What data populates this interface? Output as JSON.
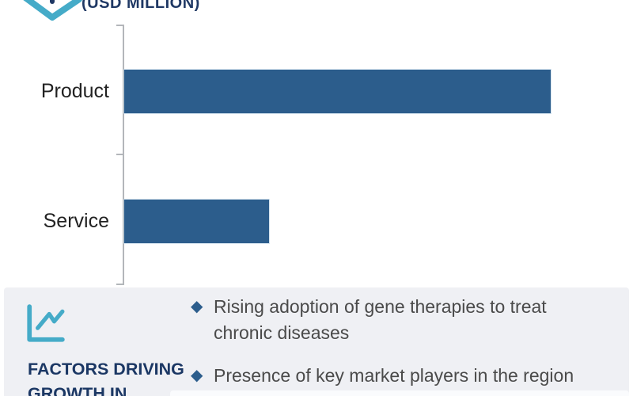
{
  "header": {
    "units_label": "(USD MILLION)"
  },
  "chart_data": {
    "type": "bar",
    "orientation": "horizontal",
    "title": "(USD MILLION)",
    "categories": [
      "Product",
      "Service"
    ],
    "values": [
      100,
      34
    ],
    "value_axis_visible": false,
    "data_labels_shown": false,
    "grid": false,
    "bar_color": "#2c5d8c",
    "note": "no numeric scale shown; values are relative bar lengths in percent of longest bar"
  },
  "factors_panel": {
    "title": "FACTORS DRIVING GROWTH IN",
    "icon": "line-chart-icon",
    "bullet_marker": "◆",
    "bullets": [
      "Rising adoption of gene therapies to treat chronic diseases",
      "Presence of key market players in the region"
    ]
  },
  "colors": {
    "bar": "#2c5d8c",
    "navy": "#1f3864",
    "teal": "#45abc8",
    "panel_bg": "#eff0f4",
    "body_text": "#4a4a4a",
    "axis": "#b3b6ba"
  }
}
